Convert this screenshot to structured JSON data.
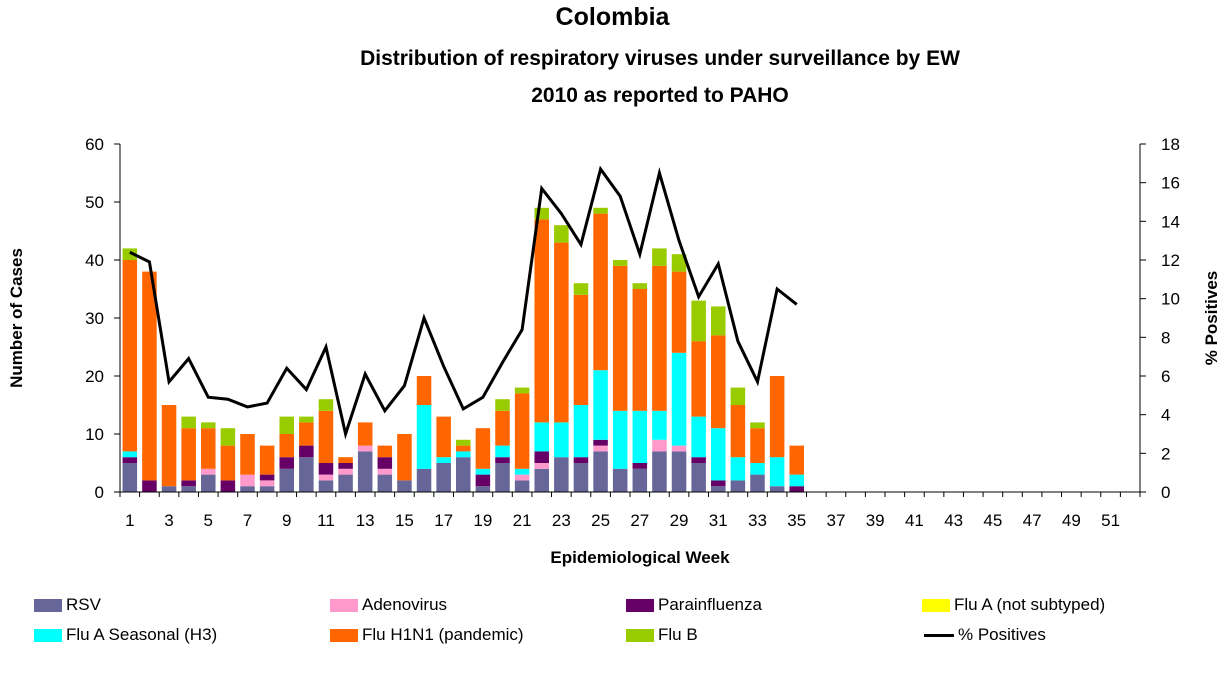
{
  "chart_data": {
    "type": "bar",
    "title": "Colombia",
    "subtitle_line1": "Distribution of respiratory viruses under surveillance by EW",
    "subtitle_line2": "2010 as reported to PAHO",
    "xlabel": "Epidemiological Week",
    "ylabel": "Number of Cases",
    "y2label": "% Positives",
    "ylim": [
      0,
      60
    ],
    "y2lim": [
      0,
      18
    ],
    "yticks": [
      0,
      10,
      20,
      30,
      40,
      50,
      60
    ],
    "y2ticks": [
      0,
      2,
      4,
      6,
      8,
      10,
      12,
      14,
      16,
      18
    ],
    "weeks": 52,
    "x_tick_labels": [
      "1",
      "3",
      "5",
      "7",
      "9",
      "11",
      "13",
      "15",
      "17",
      "19",
      "21",
      "23",
      "25",
      "27",
      "29",
      "31",
      "33",
      "35",
      "37",
      "39",
      "41",
      "43",
      "45",
      "47",
      "49",
      "51"
    ],
    "stacked": true,
    "series": [
      {
        "name": "RSV",
        "color": "#666699",
        "values": [
          5,
          0,
          1,
          1,
          3,
          0,
          1,
          1,
          4,
          6,
          2,
          3,
          7,
          3,
          2,
          4,
          5,
          6,
          1,
          5,
          2,
          4,
          6,
          5,
          7,
          4,
          4,
          7,
          7,
          5,
          1,
          2,
          3,
          1,
          0
        ]
      },
      {
        "name": "Adenovirus",
        "color": "#FF99CC",
        "values": [
          0,
          0,
          0,
          0,
          1,
          0,
          2,
          1,
          0,
          0,
          1,
          1,
          1,
          1,
          0,
          0,
          0,
          0,
          0,
          0,
          1,
          1,
          0,
          0,
          1,
          0,
          0,
          2,
          1,
          0,
          0,
          0,
          0,
          0,
          0
        ]
      },
      {
        "name": "Parainfluenza",
        "color": "#660066",
        "values": [
          1,
          2,
          0,
          1,
          0,
          2,
          0,
          1,
          2,
          2,
          2,
          1,
          0,
          2,
          0,
          0,
          0,
          0,
          2,
          1,
          0,
          2,
          0,
          1,
          1,
          0,
          1,
          0,
          0,
          1,
          1,
          0,
          0,
          0,
          1
        ]
      },
      {
        "name": "Flu A (not subtyped)",
        "color": "#FFFF00",
        "values": [
          0,
          0,
          0,
          0,
          0,
          0,
          0,
          0,
          0,
          0,
          0,
          0,
          0,
          0,
          0,
          0,
          0,
          0,
          0,
          0,
          0,
          0,
          0,
          0,
          0,
          0,
          0,
          0,
          0,
          0,
          0,
          0,
          0,
          0,
          0
        ]
      },
      {
        "name": "Flu A Seasonal (H3)",
        "color": "#00FFFF",
        "values": [
          1,
          0,
          0,
          0,
          0,
          0,
          0,
          0,
          0,
          0,
          0,
          0,
          0,
          0,
          0,
          11,
          1,
          1,
          1,
          2,
          1,
          5,
          6,
          9,
          12,
          10,
          9,
          5,
          16,
          7,
          9,
          4,
          2,
          5,
          2
        ]
      },
      {
        "name": "Flu H1N1 (pandemic)",
        "color": "#FF6600",
        "values": [
          33,
          36,
          14,
          9,
          7,
          6,
          7,
          5,
          4,
          4,
          9,
          1,
          4,
          2,
          8,
          5,
          7,
          1,
          7,
          6,
          13,
          35,
          31,
          19,
          27,
          25,
          21,
          25,
          14,
          13,
          16,
          9,
          6,
          14,
          5
        ]
      },
      {
        "name": "Flu B",
        "color": "#99CC00",
        "values": [
          2,
          0,
          0,
          2,
          1,
          3,
          0,
          0,
          3,
          1,
          2,
          0,
          0,
          0,
          0,
          0,
          0,
          1,
          0,
          2,
          1,
          2,
          3,
          2,
          1,
          1,
          1,
          3,
          3,
          7,
          5,
          3,
          1,
          0,
          0
        ]
      }
    ],
    "line_series": {
      "name": "% Positives",
      "color": "#000000",
      "values": [
        12.4,
        11.9,
        5.7,
        6.9,
        4.9,
        4.8,
        4.4,
        4.6,
        6.4,
        5.3,
        7.5,
        3.0,
        6.1,
        4.2,
        5.5,
        9.0,
        6.5,
        4.3,
        4.9,
        6.7,
        8.4,
        15.7,
        14.4,
        12.8,
        16.7,
        15.3,
        12.3,
        16.5,
        13.0,
        10.1,
        11.8,
        7.8,
        5.7,
        10.5,
        9.7
      ]
    },
    "grid": false,
    "legend_position": "bottom"
  }
}
